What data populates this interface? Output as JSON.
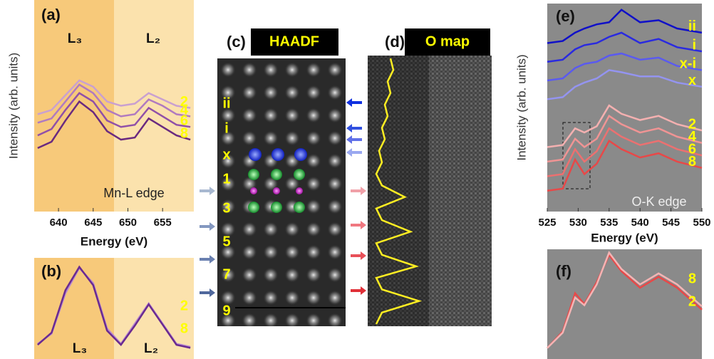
{
  "chart_data": [
    {
      "type": "line",
      "label": "(a)",
      "y_label": "Intensity (arb. units)",
      "x_label": "Energy (eV)",
      "annotation": "Mn-L edge",
      "edge_labels": [
        "L₃",
        "L₂"
      ],
      "x": [
        637,
        639,
        641,
        643,
        645,
        647,
        649,
        651,
        653,
        655,
        657,
        659
      ],
      "xlim": [
        636.5,
        659.5
      ],
      "xticks": [
        640,
        645,
        650,
        655
      ],
      "ylim": [
        0,
        10
      ],
      "series": [
        {
          "name": "2",
          "color": "#c9a0d0",
          "values": [
            4.6,
            4.8,
            5.5,
            6.2,
            5.9,
            5.2,
            5.0,
            5.1,
            5.6,
            5.3,
            5.0,
            4.9
          ]
        },
        {
          "name": "4",
          "color": "#b07ac0",
          "values": [
            4.2,
            4.4,
            5.2,
            6.0,
            5.6,
            4.8,
            4.5,
            4.6,
            5.3,
            5.0,
            4.6,
            4.5
          ]
        },
        {
          "name": "6",
          "color": "#9050a8",
          "values": [
            3.6,
            3.9,
            4.8,
            5.6,
            5.2,
            4.3,
            4.0,
            4.1,
            4.9,
            4.5,
            4.1,
            4.0
          ]
        },
        {
          "name": "8",
          "color": "#6a2a80",
          "values": [
            3.0,
            3.3,
            4.3,
            5.2,
            4.7,
            3.8,
            3.4,
            3.5,
            4.4,
            4.0,
            3.6,
            3.4
          ]
        }
      ]
    },
    {
      "type": "line",
      "label": "(b)",
      "edge_labels": [
        "L₃",
        "L₂"
      ],
      "x": [
        637,
        639,
        641,
        643,
        645,
        647,
        649,
        651,
        653,
        655,
        657,
        659
      ],
      "xlim": [
        636.5,
        659.5
      ],
      "ylim": [
        0,
        10
      ],
      "series": [
        {
          "name": "2",
          "color": "#b88ad0",
          "values": [
            1.5,
            2.5,
            6.5,
            9.0,
            7.5,
            3.0,
            1.5,
            3.5,
            5.5,
            3.5,
            1.5,
            1.2
          ]
        },
        {
          "name": "8",
          "color": "#6a2a90",
          "values": [
            1.4,
            2.6,
            6.8,
            9.1,
            7.3,
            2.8,
            1.4,
            3.3,
            5.4,
            3.4,
            1.4,
            1.1
          ]
        }
      ]
    },
    {
      "type": "line",
      "label": "(e)",
      "y_label": "Intensity (arb. units)",
      "x_label": "Energy (eV)",
      "annotation": "O-K edge",
      "x": [
        525,
        527.5,
        529.5,
        531,
        533,
        535,
        537,
        540,
        543,
        546,
        550
      ],
      "xlim": [
        525,
        550
      ],
      "xticks": [
        525,
        530,
        535,
        540,
        545,
        550
      ],
      "ylim": [
        0,
        10
      ],
      "series": [
        {
          "name": "ii",
          "color": "#1010c8",
          "values": [
            8.1,
            8.2,
            8.6,
            8.8,
            9.0,
            9.1,
            9.7,
            9.1,
            9.2,
            8.8,
            8.6
          ]
        },
        {
          "name": "i",
          "color": "#2a2ae0",
          "values": [
            7.2,
            7.3,
            7.8,
            8.0,
            8.1,
            8.4,
            8.6,
            8.1,
            8.3,
            7.9,
            7.7
          ]
        },
        {
          "name": "x-i",
          "color": "#5a5af0",
          "values": [
            6.3,
            6.4,
            6.9,
            7.1,
            7.2,
            7.5,
            7.6,
            7.3,
            7.4,
            7.0,
            6.8
          ]
        },
        {
          "name": "x",
          "color": "#9494f0",
          "values": [
            5.4,
            5.5,
            6.0,
            6.2,
            6.4,
            6.8,
            6.7,
            6.5,
            6.5,
            6.2,
            6.0
          ]
        },
        {
          "name": "2",
          "color": "#f4b0b0",
          "values": [
            3.1,
            3.2,
            4.0,
            3.8,
            4.1,
            5.1,
            4.7,
            4.4,
            4.6,
            4.2,
            3.9
          ]
        },
        {
          "name": "4",
          "color": "#f09494",
          "values": [
            2.4,
            2.5,
            3.5,
            3.1,
            3.5,
            4.6,
            4.2,
            3.8,
            4.0,
            3.6,
            3.3
          ]
        },
        {
          "name": "6",
          "color": "#ec7070",
          "values": [
            1.7,
            1.8,
            3.0,
            2.4,
            2.9,
            4.0,
            3.6,
            3.2,
            3.4,
            3.0,
            2.7
          ]
        },
        {
          "name": "8",
          "color": "#e84848",
          "values": [
            1.0,
            1.1,
            2.5,
            1.8,
            2.3,
            3.4,
            3.0,
            2.6,
            2.8,
            2.4,
            2.1
          ]
        }
      ]
    },
    {
      "type": "line",
      "label": "(f)",
      "x": [
        525,
        527.5,
        529.5,
        531,
        533,
        535,
        537,
        540,
        543,
        546,
        550
      ],
      "xlim": [
        525,
        550
      ],
      "ylim": [
        0,
        10
      ],
      "series": [
        {
          "name": "8",
          "color": "#e84848",
          "values": [
            1.0,
            2.5,
            6.0,
            5.0,
            7.0,
            9.5,
            8.0,
            6.5,
            7.5,
            6.5,
            4.5
          ]
        },
        {
          "name": "2",
          "color": "#f4b4b4",
          "values": [
            1.0,
            2.4,
            5.6,
            4.9,
            6.8,
            9.7,
            8.2,
            6.8,
            7.8,
            6.8,
            4.8
          ]
        }
      ]
    },
    {
      "type": "profile",
      "label": "(d)",
      "title": "O map",
      "color": "#ffee22",
      "xlim": [
        0,
        10
      ],
      "values": [
        3.5,
        4,
        3,
        3.5,
        2.5,
        3,
        2,
        2.5,
        1.5,
        2,
        1,
        2,
        6,
        1,
        2,
        7,
        1,
        2,
        8,
        1,
        2,
        8.5,
        2,
        1
      ]
    }
  ],
  "panel_c": {
    "label": "(c)",
    "title": "HAADF",
    "row_labels": [
      "ii",
      "i",
      "x",
      "1",
      "3",
      "5",
      "7",
      "9"
    ]
  }
}
